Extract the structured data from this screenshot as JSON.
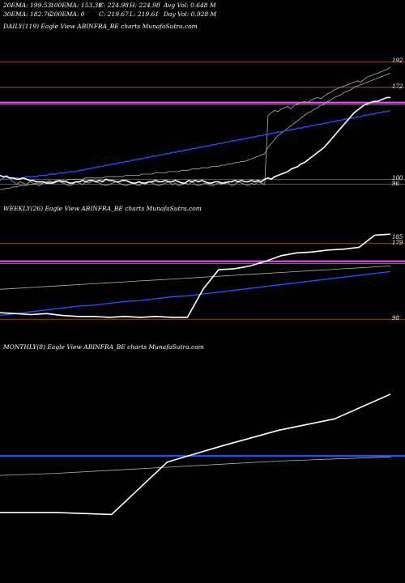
{
  "header": {
    "row1": [
      "20EMA: 199.53",
      "100EMA: 153.39",
      "C: 224.98",
      "H: 224.98",
      "Avg Vol: 0.648  M"
    ],
    "row2": [
      "30EMA: 182.76",
      "200EMA: 0",
      "C: 219.67",
      "L: 219.61",
      "Day Vol: 0.928  M"
    ]
  },
  "panels": {
    "daily": {
      "title": "DAILY(119) Eagle   View  ABINFRA_BE charts MunafaSutra.com"
    },
    "weekly": {
      "title": "WEEKLY(26) Eagle   View  ABINFRA_BE charts MunafaSutra.com"
    },
    "monthly": {
      "title": "MONTHLY(8) Eagle   View  ABINFRA_BE charts MunafaSutra.com"
    }
  },
  "colors": {
    "background": "#000000",
    "price": "#ffffff",
    "ema_blue": "#1f4fff",
    "ema_gray": "#b0b0b0",
    "pink": "#ff44ff",
    "orange_level": "#b8601a"
  },
  "chart_data": [
    {
      "type": "line",
      "title": "DAILY(119) Eagle   View  ABINFRA_BE charts MunafaSutra.com",
      "ylim": [
        85,
        215
      ],
      "right_labels": [
        "192",
        "172",
        "100",
        "96"
      ],
      "levels": [
        {
          "value": 192,
          "color": "orange"
        },
        {
          "value": 172,
          "color": "orange"
        },
        {
          "value": 160,
          "color": "pink"
        },
        {
          "value": 100,
          "color": "orange"
        },
        {
          "value": 96,
          "color": "orange"
        }
      ],
      "series": [
        {
          "values": [
            103,
            102,
            102,
            101,
            101,
            100,
            100,
            101,
            100,
            99,
            99,
            98,
            98,
            98,
            97,
            97,
            97,
            98,
            99,
            98,
            98,
            97,
            97,
            98,
            98,
            99,
            98,
            99,
            99,
            98,
            99,
            98,
            100,
            99,
            99,
            98,
            98,
            99,
            99,
            98,
            97,
            97,
            98,
            97,
            97,
            98,
            98,
            99,
            98,
            98,
            99,
            98,
            98,
            99,
            98,
            97,
            97,
            99,
            98,
            99,
            98,
            99,
            98,
            97,
            97,
            98,
            98,
            97,
            97,
            98,
            98,
            99,
            98,
            99,
            98,
            98,
            99,
            98,
            99,
            98,
            100,
            101,
            100,
            102,
            103,
            104,
            105,
            106,
            108,
            109,
            110,
            112,
            113,
            115,
            117,
            119,
            121,
            123,
            125,
            128,
            131,
            134,
            137,
            140,
            143,
            146,
            149,
            152,
            154,
            156,
            158,
            159,
            160,
            161,
            161,
            162,
            163,
            164,
            164
          ]
        },
        {
          "values": [
            100,
            100,
            100,
            100,
            101,
            101,
            101,
            101,
            102,
            102,
            102,
            102,
            103,
            103,
            103,
            104,
            104,
            104,
            105,
            105,
            105,
            106,
            106,
            106,
            107,
            107,
            108,
            108,
            109,
            109,
            110,
            110,
            111,
            111,
            112,
            112,
            113,
            113,
            114,
            114,
            115,
            115,
            116,
            116,
            117,
            117,
            118,
            118,
            119,
            119,
            120,
            120,
            121,
            121,
            122,
            122,
            123,
            123,
            124,
            124,
            125,
            125,
            126,
            126,
            127,
            127,
            128,
            128,
            129,
            129,
            130,
            130,
            131,
            131,
            132,
            132,
            133,
            133,
            134,
            134,
            135,
            135,
            136,
            136,
            137,
            137,
            138,
            138,
            139,
            139,
            140,
            140,
            141,
            141,
            142,
            142,
            143,
            143,
            144,
            144,
            145,
            145,
            146,
            146,
            147,
            147,
            148,
            148,
            149,
            149,
            150,
            150,
            151,
            151,
            152,
            152,
            153,
            153,
            154
          ]
        },
        {
          "values": [
            99,
            101,
            103,
            100,
            98,
            96,
            98,
            97,
            96,
            98,
            97,
            96,
            95,
            97,
            98,
            99,
            97,
            99,
            98,
            97,
            96,
            95,
            96,
            98,
            97,
            96,
            98,
            97,
            99,
            98,
            97,
            96,
            95,
            96,
            97,
            98,
            97,
            96,
            95,
            96,
            97,
            96,
            95,
            97,
            96,
            98,
            97,
            96,
            95,
            96,
            97,
            98,
            96,
            97,
            95,
            96,
            97,
            96,
            98,
            96,
            95,
            96,
            97,
            96,
            95,
            96,
            97,
            96,
            98,
            97,
            95,
            96,
            98,
            97,
            96,
            95,
            97,
            96,
            98,
            97,
            96,
            150,
            152,
            154,
            153,
            155,
            156,
            157,
            155,
            158,
            159,
            160,
            161,
            160,
            162,
            163,
            164,
            163,
            165,
            167,
            168,
            170,
            171,
            172,
            173,
            174,
            175,
            176,
            177,
            176,
            178,
            180,
            181,
            182,
            183,
            184,
            185,
            186,
            188
          ]
        },
        {
          "values": [
            92,
            92,
            93,
            93,
            94,
            94,
            95,
            95,
            95,
            96,
            96,
            97,
            97,
            97,
            98,
            98,
            98,
            99,
            99,
            99,
            99,
            100,
            100,
            100,
            100,
            100,
            101,
            101,
            101,
            101,
            101,
            101,
            102,
            102,
            102,
            102,
            102,
            102,
            103,
            103,
            103,
            103,
            103,
            104,
            104,
            104,
            104,
            105,
            105,
            105,
            105,
            106,
            106,
            106,
            106,
            107,
            107,
            107,
            108,
            108,
            108,
            109,
            109,
            109,
            110,
            110,
            110,
            111,
            111,
            112,
            112,
            113,
            113,
            114,
            114,
            115,
            116,
            117,
            118,
            119,
            120,
            125,
            128,
            131,
            134,
            136,
            138,
            140,
            142,
            144,
            146,
            148,
            150,
            152,
            153,
            155,
            156,
            158,
            159,
            161,
            162,
            164,
            165,
            166,
            168,
            169,
            170,
            172,
            173,
            174,
            175,
            176,
            177,
            178,
            179,
            180,
            181,
            182,
            183
          ]
        }
      ]
    },
    {
      "type": "line",
      "title": "WEEKLY(26) Eagle   View  ABINFRA_BE charts MunafaSutra.com",
      "ylim": [
        80,
        210
      ],
      "right_labels": [
        "185",
        "179",
        "98"
      ],
      "levels": [
        {
          "value": 179,
          "color": "orange"
        },
        {
          "value": 160,
          "color": "pink"
        },
        {
          "value": 98,
          "color": "orange"
        }
      ],
      "series": [
        {
          "values": [
            105,
            104,
            103,
            104,
            102,
            101,
            101,
            100,
            101,
            100,
            101,
            100,
            100,
            130,
            151,
            152,
            155,
            160,
            166,
            169,
            170,
            172,
            173,
            175,
            188,
            189
          ]
        },
        {
          "values": [
            102,
            104,
            106,
            108,
            110,
            112,
            113,
            115,
            117,
            118,
            120,
            122,
            123,
            125,
            127,
            129,
            131,
            133,
            135,
            137,
            139,
            141,
            143,
            145,
            147,
            149
          ]
        },
        {
          "values": [
            130,
            131,
            132,
            133,
            134,
            135,
            136,
            137,
            138,
            139,
            140,
            141,
            142,
            143,
            144,
            145,
            146,
            147,
            148,
            149,
            150,
            151,
            152,
            153,
            154,
            155
          ]
        }
      ]
    },
    {
      "type": "line",
      "title": "MONTHLY(8) Eagle   View  ABINFRA_BE charts MunafaSutra.com",
      "ylim": [
        60,
        260
      ],
      "right_labels": [],
      "levels": [
        {
          "value": 160,
          "color": "blue"
        }
      ],
      "series": [
        {
          "values": [
            105,
            105,
            103,
            154,
            170,
            185,
            196,
            220
          ]
        },
        {
          "values": [
            141,
            143,
            146,
            149,
            152,
            155,
            157,
            159
          ]
        }
      ]
    }
  ]
}
